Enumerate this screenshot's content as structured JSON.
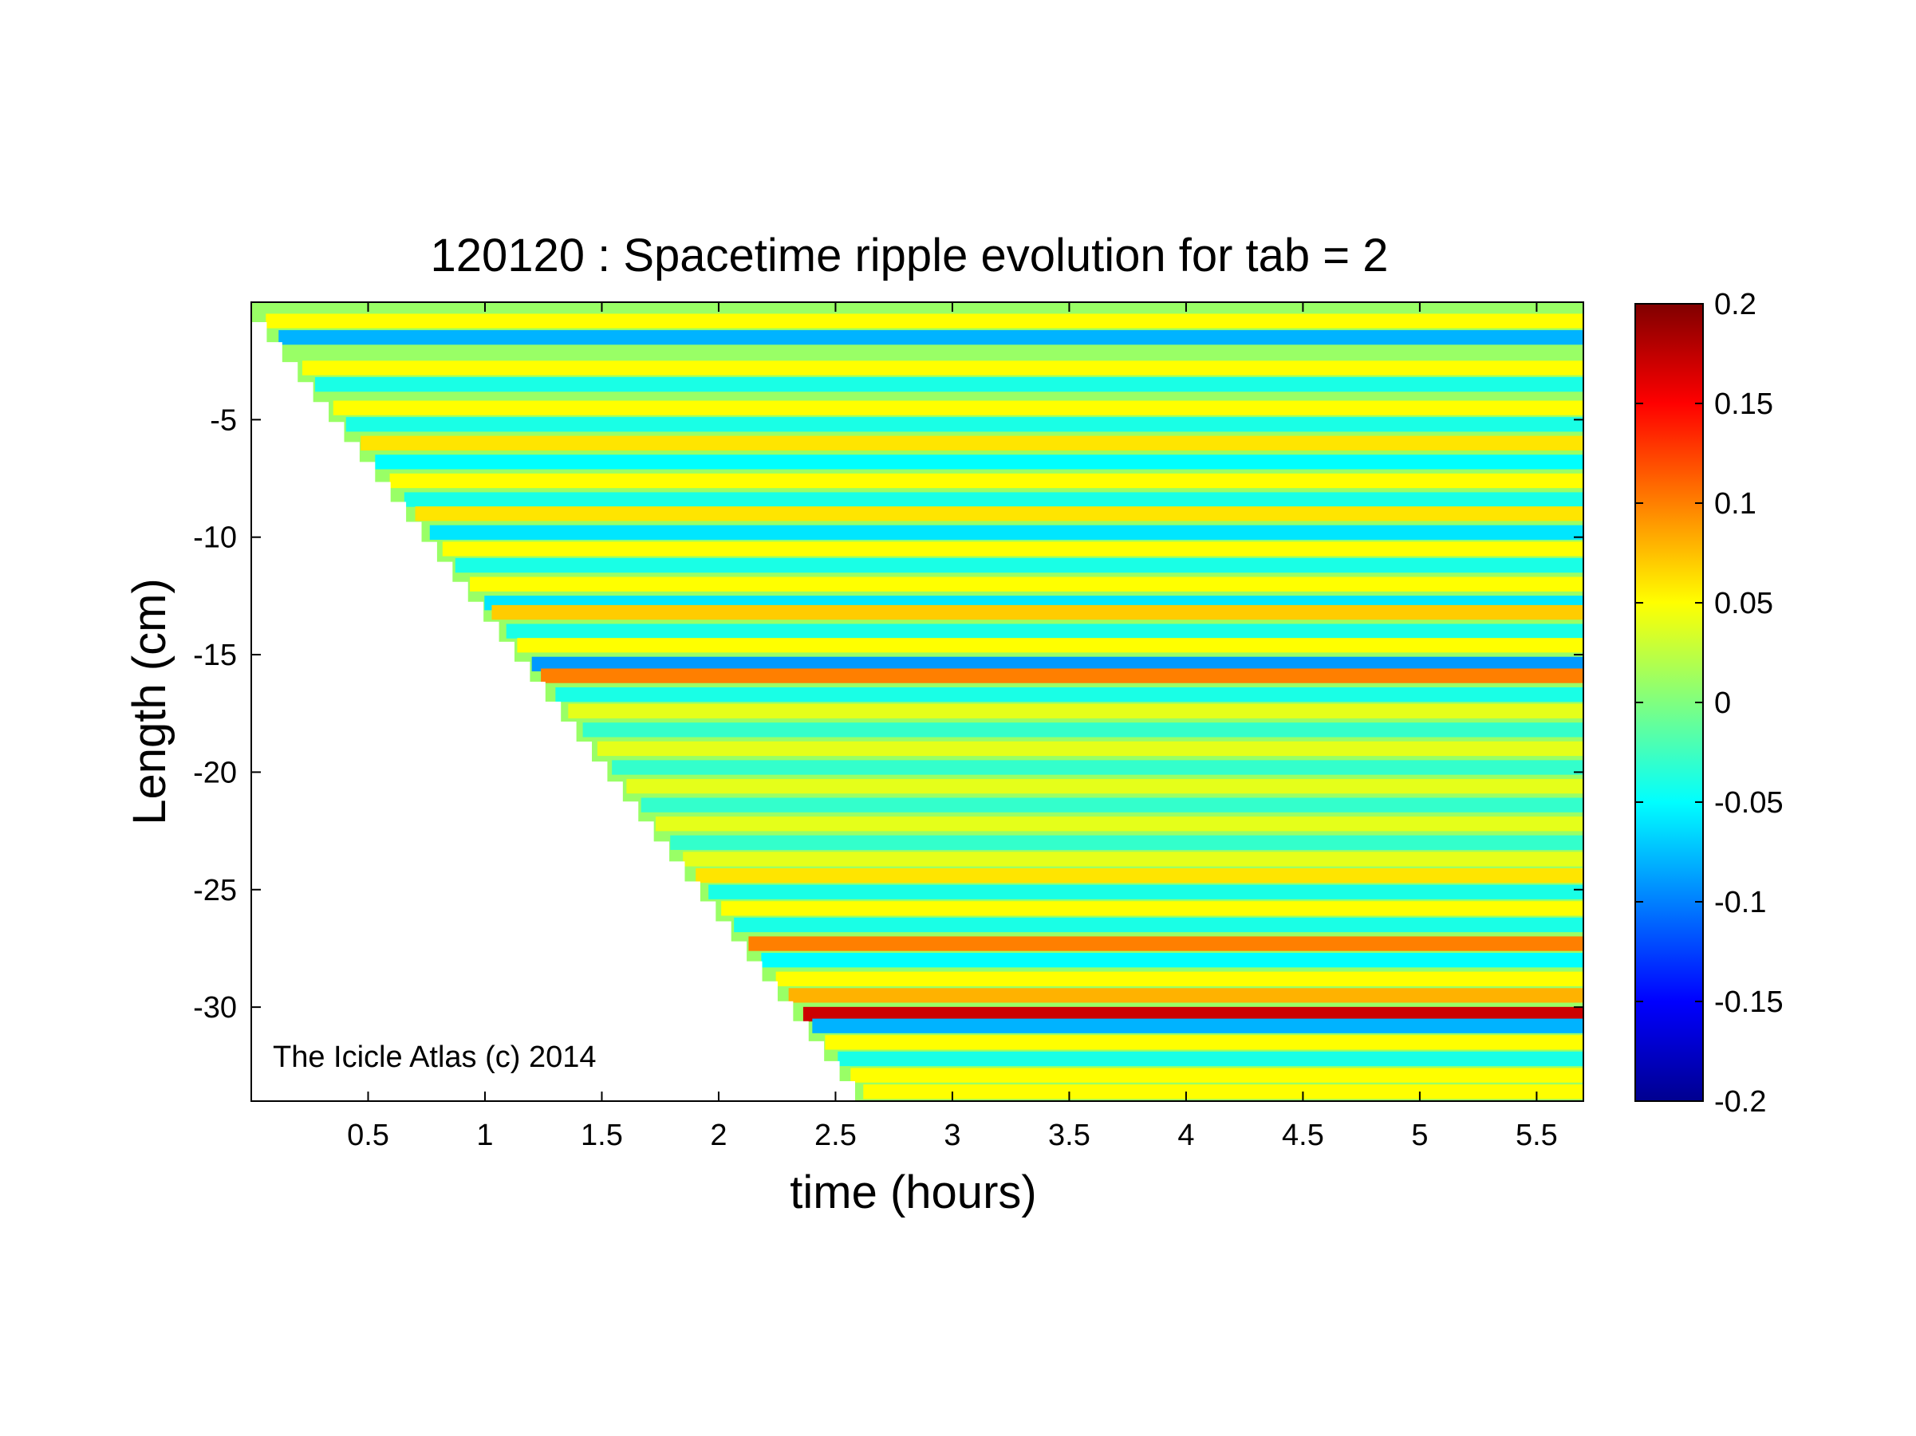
{
  "chart_data": {
    "type": "heatmap",
    "title": "120120 : Spacetime ripple evolution for tab = 2",
    "xlabel": "time (hours)",
    "ylabel": "Length (cm)",
    "xlim": [
      0,
      5.7
    ],
    "ylim": [
      -34,
      0
    ],
    "x_ticks": [
      0.5,
      1,
      1.5,
      2,
      2.5,
      3,
      3.5,
      4,
      4.5,
      5,
      5.5
    ],
    "x_tick_labels": [
      "0.5",
      "1",
      "1.5",
      "2",
      "2.5",
      "3",
      "3.5",
      "4",
      "4.5",
      "5",
      "5.5"
    ],
    "y_ticks": [
      -5,
      -10,
      -15,
      -20,
      -25,
      -30
    ],
    "y_tick_labels": [
      "-5",
      "-10",
      "-15",
      "-20",
      "-25",
      "-30"
    ],
    "colorbar": {
      "range": [
        -0.2,
        0.2
      ],
      "ticks": [
        0.2,
        0.15,
        0.1,
        0.05,
        0,
        -0.05,
        -0.1,
        -0.15,
        -0.2
      ],
      "tick_labels": [
        "0.2",
        "0.15",
        "0.1",
        "0.05",
        "0",
        "-0.05",
        "-0.1",
        "-0.15",
        "-0.2"
      ],
      "colormap": "jet"
    },
    "growth_front": {
      "description_points_time_length": [
        [
          0.0,
          0.0
        ],
        [
          2.65,
          -34.0
        ]
      ]
    },
    "bands": [
      {
        "y": -0.8,
        "value": 0.05
      },
      {
        "y": -1.5,
        "value": -0.08
      },
      {
        "y": -2.8,
        "value": 0.05
      },
      {
        "y": -3.5,
        "value": -0.04
      },
      {
        "y": -4.5,
        "value": 0.05
      },
      {
        "y": -5.2,
        "value": -0.04
      },
      {
        "y": -6.0,
        "value": 0.06
      },
      {
        "y": -6.8,
        "value": -0.05
      },
      {
        "y": -7.6,
        "value": 0.05
      },
      {
        "y": -8.4,
        "value": -0.04
      },
      {
        "y": -9.0,
        "value": 0.06
      },
      {
        "y": -9.8,
        "value": -0.06
      },
      {
        "y": -10.5,
        "value": 0.05
      },
      {
        "y": -11.2,
        "value": -0.04
      },
      {
        "y": -12.0,
        "value": 0.05
      },
      {
        "y": -12.8,
        "value": -0.06
      },
      {
        "y": -13.2,
        "value": 0.07
      },
      {
        "y": -14.0,
        "value": -0.04
      },
      {
        "y": -14.6,
        "value": 0.05
      },
      {
        "y": -15.4,
        "value": -0.09
      },
      {
        "y": -15.9,
        "value": 0.1
      },
      {
        "y": -16.7,
        "value": -0.04
      },
      {
        "y": -17.4,
        "value": 0.04
      },
      {
        "y": -18.2,
        "value": -0.03
      },
      {
        "y": -19.0,
        "value": 0.04
      },
      {
        "y": -19.8,
        "value": -0.03
      },
      {
        "y": -20.6,
        "value": 0.04
      },
      {
        "y": -21.4,
        "value": -0.03
      },
      {
        "y": -22.2,
        "value": 0.04
      },
      {
        "y": -23.0,
        "value": -0.03
      },
      {
        "y": -23.7,
        "value": 0.04
      },
      {
        "y": -24.4,
        "value": 0.06
      },
      {
        "y": -25.1,
        "value": -0.04
      },
      {
        "y": -25.8,
        "value": 0.05
      },
      {
        "y": -26.5,
        "value": -0.04
      },
      {
        "y": -27.3,
        "value": 0.1
      },
      {
        "y": -28.0,
        "value": -0.05
      },
      {
        "y": -28.8,
        "value": 0.05
      },
      {
        "y": -29.5,
        "value": 0.08
      },
      {
        "y": -30.3,
        "value": 0.17
      },
      {
        "y": -30.8,
        "value": -0.08
      },
      {
        "y": -31.5,
        "value": 0.05
      },
      {
        "y": -32.2,
        "value": -0.04
      },
      {
        "y": -32.9,
        "value": 0.05
      },
      {
        "y": -33.6,
        "value": 0.05
      }
    ],
    "annotations": [
      "The Icicle Atlas (c) 2014"
    ]
  }
}
